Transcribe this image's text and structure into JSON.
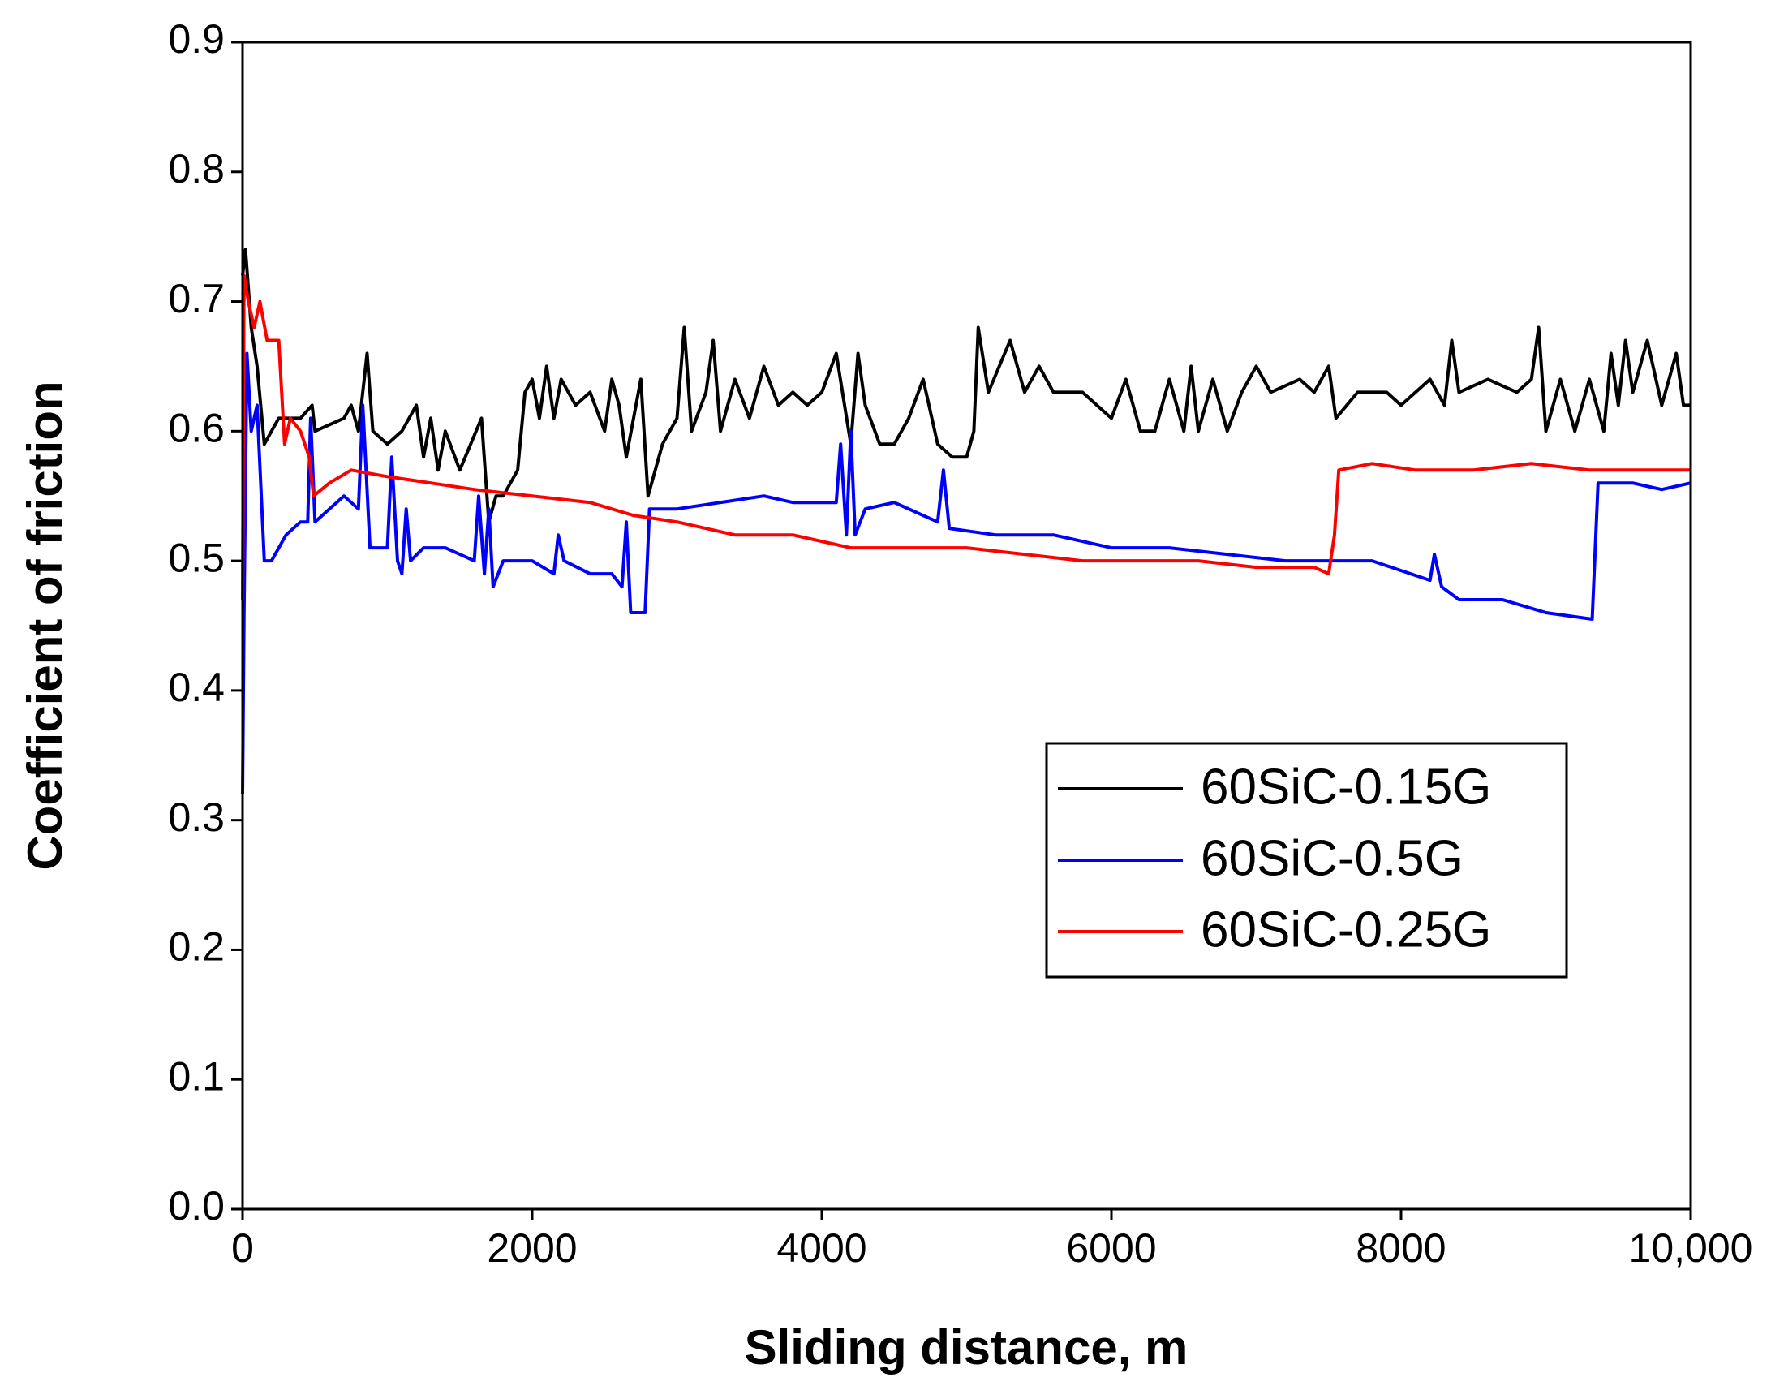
{
  "chart_data": {
    "type": "line",
    "xlabel": "Sliding distance, m",
    "ylabel": "Coefficient of friction",
    "xlim": [
      0,
      10000
    ],
    "ylim": [
      0,
      0.9
    ],
    "xticks": [
      0,
      2000,
      4000,
      6000,
      8000,
      {
        "value": 10000,
        "label": "10,000"
      }
    ],
    "yticks": [
      {
        "value": 0,
        "label": "0.0"
      },
      0.1,
      0.2,
      0.3,
      0.4,
      0.5,
      0.6,
      0.7,
      0.8,
      0.9
    ],
    "legend": "center right",
    "series": [
      {
        "name": "60SiC-0.15G",
        "color": "#000000",
        "x": [
          0,
          20,
          60,
          100,
          150,
          250,
          400,
          480,
          500,
          700,
          750,
          800,
          860,
          900,
          1000,
          1100,
          1200,
          1250,
          1300,
          1350,
          1400,
          1500,
          1650,
          1700,
          1750,
          1800,
          1900,
          1950,
          2000,
          2050,
          2100,
          2150,
          2200,
          2300,
          2400,
          2500,
          2550,
          2600,
          2650,
          2750,
          2800,
          2900,
          3000,
          3050,
          3100,
          3200,
          3250,
          3300,
          3400,
          3500,
          3600,
          3700,
          3800,
          3900,
          4000,
          4100,
          4200,
          4250,
          4300,
          4400,
          4500,
          4600,
          4700,
          4800,
          4900,
          5000,
          5050,
          5080,
          5150,
          5300,
          5400,
          5500,
          5600,
          5800,
          5900,
          6000,
          6100,
          6200,
          6300,
          6400,
          6500,
          6550,
          6600,
          6700,
          6800,
          6900,
          7000,
          7100,
          7300,
          7400,
          7500,
          7550,
          7700,
          7900,
          8000,
          8200,
          8300,
          8350,
          8400,
          8600,
          8800,
          8900,
          8950,
          9000,
          9100,
          9200,
          9300,
          9400,
          9450,
          9500,
          9550,
          9600,
          9700,
          9800,
          9900,
          9950,
          10000
        ],
        "values": [
          0.72,
          0.74,
          0.68,
          0.65,
          0.59,
          0.61,
          0.61,
          0.62,
          0.6,
          0.61,
          0.62,
          0.6,
          0.66,
          0.6,
          0.59,
          0.6,
          0.62,
          0.58,
          0.61,
          0.57,
          0.6,
          0.57,
          0.61,
          0.53,
          0.55,
          0.55,
          0.57,
          0.63,
          0.64,
          0.61,
          0.65,
          0.61,
          0.64,
          0.62,
          0.63,
          0.6,
          0.64,
          0.62,
          0.58,
          0.64,
          0.55,
          0.59,
          0.61,
          0.68,
          0.6,
          0.63,
          0.67,
          0.6,
          0.64,
          0.61,
          0.65,
          0.62,
          0.63,
          0.62,
          0.63,
          0.66,
          0.59,
          0.66,
          0.62,
          0.59,
          0.59,
          0.61,
          0.64,
          0.59,
          0.58,
          0.58,
          0.6,
          0.68,
          0.63,
          0.67,
          0.63,
          0.65,
          0.63,
          0.63,
          0.62,
          0.61,
          0.64,
          0.6,
          0.6,
          0.64,
          0.6,
          0.65,
          0.6,
          0.64,
          0.6,
          0.63,
          0.65,
          0.63,
          0.64,
          0.63,
          0.65,
          0.61,
          0.63,
          0.63,
          0.62,
          0.64,
          0.62,
          0.67,
          0.63,
          0.64,
          0.63,
          0.64,
          0.68,
          0.6,
          0.64,
          0.6,
          0.64,
          0.6,
          0.66,
          0.62,
          0.67,
          0.63,
          0.67,
          0.62,
          0.66,
          0.62,
          0.62
        ]
      },
      {
        "name": "60SiC-0.5G",
        "color": "#0000ff",
        "x": [
          0,
          10,
          30,
          60,
          100,
          150,
          200,
          300,
          400,
          450,
          470,
          500,
          600,
          700,
          800,
          830,
          880,
          1000,
          1030,
          1070,
          1100,
          1130,
          1160,
          1250,
          1400,
          1600,
          1630,
          1670,
          1700,
          1730,
          1800,
          2000,
          2150,
          2180,
          2220,
          2400,
          2550,
          2620,
          2650,
          2680,
          2780,
          2810,
          3000,
          3300,
          3600,
          3800,
          4100,
          4130,
          4170,
          4200,
          4230,
          4300,
          4500,
          4700,
          4800,
          4840,
          4880,
          5200,
          5600,
          6000,
          6400,
          6800,
          7200,
          7600,
          7800,
          8200,
          8230,
          8280,
          8400,
          8700,
          9000,
          9320,
          9360,
          9600,
          9800,
          10000
        ],
        "values": [
          0.32,
          0.46,
          0.66,
          0.6,
          0.62,
          0.5,
          0.5,
          0.52,
          0.53,
          0.53,
          0.61,
          0.53,
          0.54,
          0.55,
          0.54,
          0.62,
          0.51,
          0.51,
          0.58,
          0.5,
          0.49,
          0.54,
          0.5,
          0.51,
          0.51,
          0.5,
          0.55,
          0.49,
          0.54,
          0.48,
          0.5,
          0.5,
          0.49,
          0.52,
          0.5,
          0.49,
          0.49,
          0.48,
          0.53,
          0.46,
          0.46,
          0.54,
          0.54,
          0.545,
          0.55,
          0.545,
          0.545,
          0.59,
          0.52,
          0.6,
          0.52,
          0.54,
          0.545,
          0.535,
          0.53,
          0.57,
          0.525,
          0.52,
          0.52,
          0.51,
          0.51,
          0.505,
          0.5,
          0.5,
          0.5,
          0.485,
          0.505,
          0.48,
          0.47,
          0.47,
          0.46,
          0.455,
          0.56,
          0.56,
          0.555,
          0.56
        ]
      },
      {
        "name": "60SiC-0.25G",
        "color": "#ff0000",
        "x": [
          0,
          10,
          40,
          80,
          120,
          170,
          250,
          290,
          330,
          400,
          460,
          490,
          600,
          750,
          1000,
          1300,
          1600,
          2000,
          2400,
          2700,
          3000,
          3400,
          3800,
          4200,
          4600,
          5000,
          5400,
          5800,
          6200,
          6600,
          7000,
          7400,
          7500,
          7540,
          7570,
          7800,
          8100,
          8500,
          8900,
          9300,
          9700,
          10000
        ],
        "values": [
          0.47,
          0.72,
          0.7,
          0.68,
          0.7,
          0.67,
          0.67,
          0.59,
          0.61,
          0.6,
          0.58,
          0.55,
          0.56,
          0.57,
          0.565,
          0.56,
          0.555,
          0.55,
          0.545,
          0.535,
          0.53,
          0.52,
          0.52,
          0.51,
          0.51,
          0.51,
          0.505,
          0.5,
          0.5,
          0.5,
          0.495,
          0.495,
          0.49,
          0.52,
          0.57,
          0.575,
          0.57,
          0.57,
          0.575,
          0.57,
          0.57,
          0.57
        ]
      }
    ]
  }
}
